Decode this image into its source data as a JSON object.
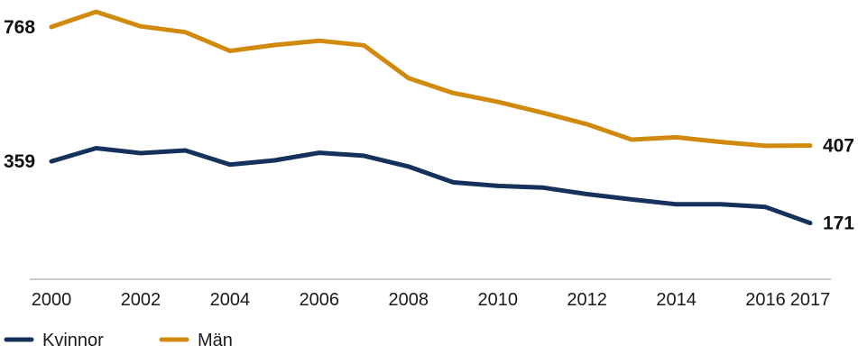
{
  "chart_data": {
    "type": "line",
    "title": "",
    "xlabel": "",
    "ylabel": "",
    "x": [
      2000,
      2001,
      2002,
      2003,
      2004,
      2005,
      2006,
      2007,
      2008,
      2009,
      2010,
      2011,
      2012,
      2013,
      2014,
      2015,
      2016,
      2017
    ],
    "x_tick_labels": [
      "2000",
      "2002",
      "2004",
      "2006",
      "2008",
      "2010",
      "2012",
      "2014",
      "2016",
      "2017"
    ],
    "ylim": [
      0,
      850
    ],
    "grid": false,
    "legend_placement": "bottom-left",
    "series": [
      {
        "name": "Kvinnor",
        "color": "#16325c",
        "values": [
          359,
          399,
          384,
          392,
          349,
          362,
          385,
          376,
          343,
          295,
          284,
          279,
          259,
          243,
          228,
          228,
          220,
          171
        ],
        "start_label": "359",
        "end_label": "171"
      },
      {
        "name": "Män",
        "color": "#d08a0e",
        "values": [
          768,
          814,
          770,
          752,
          695,
          713,
          726,
          712,
          612,
          567,
          540,
          507,
          472,
          425,
          432,
          418,
          406,
          407
        ],
        "start_label": "768",
        "end_label": "407"
      }
    ]
  }
}
